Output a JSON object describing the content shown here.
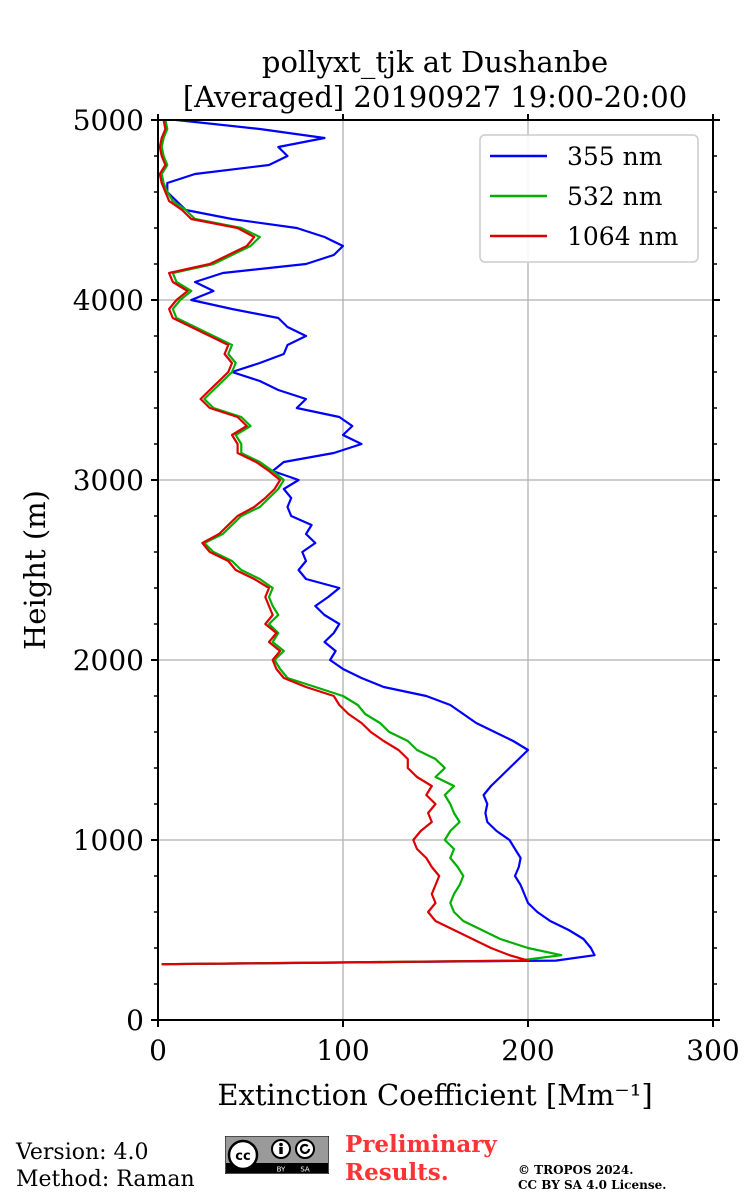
{
  "chart_data": {
    "type": "line",
    "title": "pollyxt_tjk at Dushanbe",
    "subtitle": "[Averaged] 20190927 19:00-20:00",
    "xlabel": "Extinction Coefficient [Mm⁻¹]",
    "ylabel": "Height (m)",
    "xlim": [
      0,
      300
    ],
    "ylim": [
      0,
      5000
    ],
    "xticks": [
      "0",
      "100",
      "200",
      "300"
    ],
    "yticks": [
      "0",
      "1000",
      "2000",
      "3000",
      "4000",
      "5000"
    ],
    "grid": true,
    "legend_position": "top-right",
    "height": [
      310,
      330,
      360,
      400,
      450,
      500,
      550,
      600,
      650,
      700,
      750,
      800,
      850,
      900,
      950,
      1000,
      1050,
      1100,
      1150,
      1200,
      1250,
      1300,
      1350,
      1400,
      1450,
      1500,
      1550,
      1600,
      1650,
      1700,
      1750,
      1800,
      1850,
      1900,
      1950,
      2000,
      2050,
      2100,
      2150,
      2200,
      2250,
      2300,
      2350,
      2400,
      2450,
      2500,
      2550,
      2600,
      2650,
      2700,
      2750,
      2800,
      2850,
      2900,
      2950,
      3000,
      3050,
      3100,
      3150,
      3200,
      3250,
      3300,
      3350,
      3400,
      3450,
      3500,
      3550,
      3600,
      3650,
      3700,
      3750,
      3800,
      3850,
      3900,
      3950,
      4000,
      4050,
      4100,
      4150,
      4200,
      4250,
      4300,
      4350,
      4400,
      4450,
      4500,
      4550,
      4600,
      4650,
      4700,
      4750,
      4800,
      4850,
      4900,
      4950,
      5000
    ],
    "series": [
      {
        "name": "355 nm",
        "color": "#0000ff",
        "values": [
          2,
          215,
          236,
          234,
          230,
          222,
          212,
          205,
          200,
          198,
          196,
          193,
          195,
          196,
          193,
          190,
          183,
          178,
          177,
          178,
          176,
          180,
          185,
          190,
          195,
          200,
          192,
          182,
          172,
          165,
          158,
          145,
          122,
          110,
          100,
          93,
          96,
          90,
          95,
          98,
          90,
          85,
          92,
          98,
          80,
          76,
          80,
          78,
          85,
          80,
          83,
          72,
          70,
          72,
          68,
          76,
          62,
          68,
          95,
          110,
          100,
          105,
          98,
          75,
          80,
          65,
          55,
          40,
          55,
          68,
          70,
          80,
          70,
          65,
          40,
          18,
          30,
          20,
          35,
          80,
          95,
          100,
          90,
          75,
          40,
          15,
          10,
          5,
          5,
          20,
          60,
          70,
          65,
          90,
          55,
          10
        ]
      },
      {
        "name": "532 nm",
        "color": "#00b000",
        "values": [
          2,
          195,
          218,
          200,
          185,
          175,
          165,
          160,
          158,
          160,
          163,
          165,
          162,
          158,
          160,
          155,
          158,
          163,
          160,
          158,
          155,
          160,
          150,
          155,
          150,
          140,
          135,
          125,
          120,
          112,
          108,
          100,
          85,
          70,
          66,
          63,
          68,
          62,
          65,
          60,
          65,
          62,
          60,
          62,
          55,
          45,
          40,
          30,
          25,
          35,
          40,
          45,
          55,
          60,
          65,
          68,
          62,
          55,
          45,
          45,
          42,
          50,
          45,
          30,
          25,
          30,
          35,
          40,
          42,
          38,
          40,
          30,
          20,
          10,
          8,
          12,
          18,
          10,
          8,
          30,
          40,
          50,
          55,
          45,
          20,
          15,
          8,
          5,
          3,
          2,
          5,
          3,
          2,
          3,
          5,
          4
        ]
      },
      {
        "name": "1064 nm",
        "color": "#dd0000",
        "values": [
          2,
          200,
          190,
          180,
          170,
          160,
          150,
          146,
          150,
          148,
          150,
          152,
          148,
          145,
          140,
          138,
          142,
          148,
          146,
          150,
          145,
          148,
          140,
          135,
          135,
          130,
          122,
          115,
          110,
          103,
          98,
          95,
          80,
          68,
          64,
          62,
          66,
          60,
          64,
          58,
          62,
          60,
          58,
          60,
          52,
          42,
          38,
          28,
          24,
          33,
          38,
          43,
          52,
          58,
          63,
          66,
          60,
          53,
          43,
          43,
          40,
          48,
          43,
          28,
          23,
          28,
          33,
          38,
          40,
          36,
          38,
          28,
          18,
          8,
          6,
          10,
          16,
          8,
          6,
          28,
          38,
          48,
          52,
          43,
          18,
          13,
          6,
          4,
          2,
          1,
          4,
          2,
          1,
          2,
          4,
          3
        ]
      }
    ]
  },
  "footer": {
    "version": "Version: 4.0",
    "method": "Method: Raman",
    "cc_by": "BY",
    "cc_sa": "SA",
    "preliminary_line1": "Preliminary",
    "preliminary_line2": "Results.",
    "copyright_line1": "© TROPOS 2024.",
    "copyright_line2": "CC BY SA 4.0 License."
  }
}
